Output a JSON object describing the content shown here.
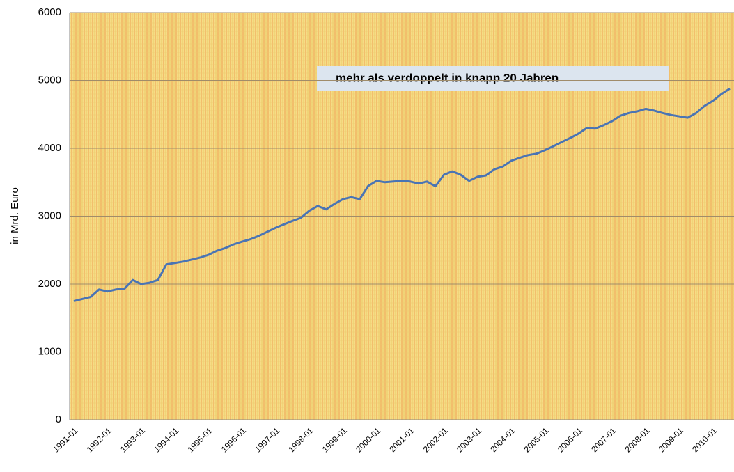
{
  "chart_data": {
    "type": "line",
    "y_label": "in Mrd. Euro",
    "annotation": "mehr als verdoppelt in knapp 20 Jahren",
    "categories": [
      "1991-01",
      null,
      null,
      null,
      "1992-01",
      null,
      null,
      null,
      "1993-01",
      null,
      null,
      null,
      "1994-01",
      null,
      null,
      null,
      "1995-01",
      null,
      null,
      null,
      "1996-01",
      null,
      null,
      null,
      "1997-01",
      null,
      null,
      null,
      "1998-01",
      null,
      null,
      null,
      "1999-01",
      null,
      null,
      null,
      "2000-01",
      null,
      null,
      null,
      "2001-01",
      null,
      null,
      null,
      "2002-01",
      null,
      null,
      null,
      "2003-01",
      null,
      null,
      null,
      "2004-01",
      null,
      null,
      null,
      "2005-01",
      null,
      null,
      null,
      "2006-01",
      null,
      null,
      null,
      "2007-01",
      null,
      null,
      null,
      "2008-01",
      null,
      null,
      null,
      "2009-01",
      null,
      null,
      null,
      "2010-01",
      null,
      null
    ],
    "series": [
      {
        "name": "in Mrd. Euro",
        "color": "#4a74b4",
        "values": [
          1750,
          1780,
          1810,
          1920,
          1890,
          1920,
          1930,
          2060,
          2000,
          2020,
          2060,
          2290,
          2310,
          2330,
          2360,
          2390,
          2430,
          2490,
          2530,
          2585,
          2625,
          2660,
          2710,
          2770,
          2830,
          2880,
          2930,
          2975,
          3080,
          3150,
          3100,
          3180,
          3250,
          3280,
          3250,
          3445,
          3520,
          3500,
          3510,
          3520,
          3510,
          3480,
          3510,
          3440,
          3610,
          3660,
          3610,
          3520,
          3580,
          3600,
          3690,
          3730,
          3815,
          3860,
          3900,
          3920,
          3970,
          4030,
          4090,
          4150,
          4215,
          4300,
          4290,
          4340,
          4400,
          4480,
          4520,
          4545,
          4580,
          4555,
          4520,
          4490,
          4470,
          4450,
          4520,
          4625,
          4700,
          4800,
          4880
        ]
      }
    ],
    "ylim": [
      0,
      6000
    ],
    "yticks": [
      0,
      1000,
      2000,
      3000,
      4000,
      5000,
      6000
    ],
    "grid": true
  }
}
